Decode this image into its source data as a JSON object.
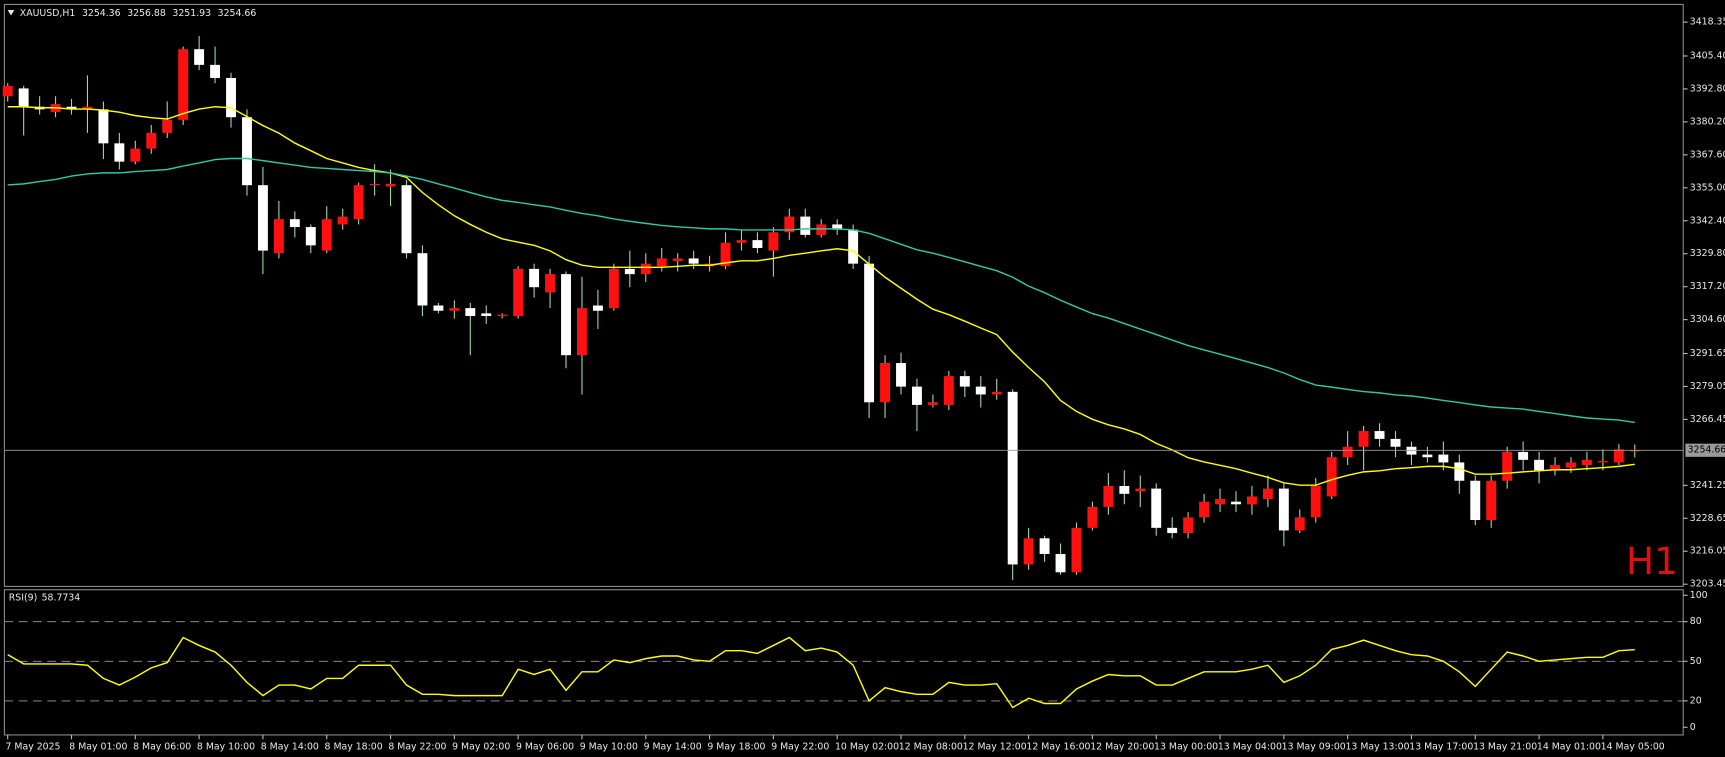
{
  "chart_data": [
    {
      "type": "candlestick",
      "title": "XAUUSD,H1",
      "watermark": "H1",
      "categories": [
        "7 May 2025",
        null,
        null,
        null,
        "8 May 01:00",
        null,
        null,
        null,
        "8 May 06:00",
        null,
        null,
        null,
        "8 May 10:00",
        null,
        null,
        null,
        "8 May 14:00",
        null,
        null,
        null,
        "8 May 18:00",
        null,
        null,
        null,
        "8 May 22:00",
        null,
        null,
        null,
        "9 May 02:00",
        null,
        null,
        null,
        "9 May 06:00",
        null,
        null,
        null,
        "9 May 10:00",
        null,
        null,
        null,
        "9 May 14:00",
        null,
        null,
        null,
        "9 May 18:00",
        null,
        null,
        null,
        "9 May 22:00",
        null,
        null,
        null,
        "10 May 02:00",
        null,
        null,
        null,
        "12 May 08:00",
        null,
        null,
        null,
        "12 May 12:00",
        null,
        null,
        null,
        "12 May 16:00",
        null,
        null,
        null,
        "12 May 20:00",
        null,
        null,
        null,
        "13 May 00:00",
        null,
        null,
        null,
        "13 May 04:00",
        null,
        null,
        null,
        "13 May 09:00",
        null,
        null,
        null,
        "13 May 13:00",
        null,
        null,
        null,
        "13 May 17:00",
        null,
        null,
        null,
        "13 May 21:00",
        null,
        null,
        null,
        "14 May 01:00",
        null,
        null,
        null,
        "14 May 05:00",
        null,
        null
      ],
      "open": [
        3390,
        3393,
        3386,
        3384,
        3386,
        3385,
        3385,
        3372,
        3365,
        3370,
        3376,
        3381,
        3408,
        3402,
        3397,
        3382,
        3356,
        3330,
        3343,
        3340,
        3331,
        3341,
        3343,
        3356,
        3355.5,
        3356,
        3330,
        3310,
        3308,
        3309,
        3307,
        3306,
        3306,
        3324,
        3315,
        3322,
        3291,
        3310,
        3309,
        3324,
        3322,
        3325,
        3327,
        3328,
        3325,
        3325,
        3334,
        3335,
        3331,
        3338,
        3344,
        3337,
        3341,
        3339,
        3326,
        3273,
        3288,
        3279,
        3272,
        3272,
        3283,
        3279,
        3276,
        3277,
        3211,
        3221,
        3215,
        3208,
        3225,
        3233,
        3241,
        3239,
        3240,
        3225,
        3223,
        3229,
        3234,
        3235,
        3234,
        3236,
        3240,
        3224,
        3229,
        3237,
        3252,
        3256,
        3262,
        3259,
        3256,
        3253,
        3253,
        3250,
        3243,
        3228,
        3243,
        3254,
        3251,
        3247,
        3248,
        3249,
        3250,
        3250,
        3254.36
      ],
      "high": [
        3395,
        3394,
        3390,
        3390,
        3389,
        3398,
        3388,
        3376,
        3373,
        3379,
        3388,
        3409,
        3413,
        3409,
        3399,
        3385,
        3363,
        3350,
        3346,
        3341,
        3348,
        3347,
        3357,
        3364,
        3362,
        3358,
        3333,
        3311,
        3312,
        3311,
        3310,
        3307,
        3325,
        3326,
        3324,
        3323,
        3321,
        3316,
        3326,
        3331,
        3330,
        3332,
        3330,
        3331,
        3329,
        3338,
        3339,
        3338,
        3340,
        3347,
        3347,
        3343,
        3343,
        3341,
        3329,
        3291,
        3292,
        3282,
        3276,
        3285,
        3285,
        3283,
        3282,
        3278,
        3225,
        3222,
        3219,
        3227,
        3235,
        3246,
        3247,
        3245,
        3242,
        3229,
        3231,
        3238,
        3240,
        3239,
        3241,
        3245,
        3242,
        3232,
        3244,
        3254,
        3262,
        3264,
        3265,
        3262,
        3258,
        3256,
        3258,
        3253,
        3245,
        3245,
        3256,
        3258,
        3254,
        3252,
        3252,
        3254,
        3255,
        3257,
        3256.88
      ],
      "low": [
        3388,
        3375,
        3383,
        3382,
        3383,
        3376,
        3366,
        3362,
        3364,
        3368,
        3374,
        3379,
        3400,
        3395,
        3378,
        3352,
        3322,
        3328,
        3336,
        3330,
        3330,
        3339,
        3341,
        3352,
        3348,
        3328,
        3306,
        3307,
        3305,
        3291,
        3303,
        3305,
        3305,
        3313,
        3309,
        3286,
        3276,
        3301,
        3308,
        3317,
        3319,
        3323,
        3323,
        3324,
        3323,
        3324,
        3331,
        3330,
        3321,
        3335,
        3336,
        3336,
        3337,
        3324,
        3267,
        3267,
        3276,
        3262,
        3271,
        3270,
        3275,
        3271,
        3274,
        3205,
        3209,
        3212,
        3207,
        3207,
        3224,
        3230,
        3234,
        3233,
        3222,
        3221,
        3221,
        3227,
        3231,
        3231,
        3230,
        3233,
        3218,
        3223,
        3227,
        3236,
        3249,
        3247,
        3256,
        3252,
        3249,
        3250,
        3247,
        3238,
        3226,
        3225,
        3240,
        3247,
        3242,
        3245,
        3246,
        3247,
        3247,
        3249,
        3251.93
      ],
      "close": [
        3394,
        3386,
        3385,
        3387,
        3385,
        3386,
        3372,
        3365,
        3370,
        3376,
        3381,
        3408,
        3402,
        3397,
        3382,
        3356,
        3331,
        3343,
        3340,
        3333,
        3343,
        3344,
        3356,
        3356.5,
        3356.5,
        3330,
        3310,
        3308,
        3309,
        3306,
        3306,
        3306.5,
        3324,
        3317,
        3322,
        3291,
        3309,
        3308,
        3324,
        3322,
        3326,
        3328,
        3328,
        3326,
        3326,
        3334,
        3335,
        3332,
        3338,
        3344,
        3337,
        3341,
        3339,
        3326,
        3273,
        3288,
        3279,
        3272,
        3273,
        3283,
        3279,
        3276,
        3277,
        3211,
        3221,
        3215,
        3208,
        3225,
        3233,
        3241,
        3238,
        3240,
        3225,
        3223,
        3229,
        3235,
        3236,
        3234,
        3237,
        3240,
        3224,
        3229,
        3241,
        3252,
        3256,
        3262,
        3259,
        3256,
        3253,
        3252,
        3250,
        3243,
        3228,
        3243,
        3254,
        3251,
        3247,
        3249,
        3250,
        3251,
        3250.5,
        3255,
        3254.66
      ],
      "up_color": "#ff1010",
      "down_color": "#ffffff",
      "wick_color": "#9fd89f",
      "series": [
        {
          "color": "#ffff00",
          "values": [
            3386.0,
            3386.0,
            3385.6,
            3385.6,
            3385.1,
            3385.1,
            3384.7,
            3383.9,
            3382.6,
            3381.8,
            3381.3,
            3383.4,
            3385.1,
            3386.0,
            3385.6,
            3382.2,
            3378.8,
            3375.9,
            3372.1,
            3369.2,
            3366.2,
            3364.5,
            3362.8,
            3361.6,
            3360.7,
            3359.0,
            3353.2,
            3348.5,
            3344.3,
            3341.0,
            3338.0,
            3335.5,
            3334.2,
            3333.0,
            3330.9,
            3327.5,
            3325.4,
            3324.6,
            3324.6,
            3324.6,
            3324.6,
            3324.6,
            3325.0,
            3325.4,
            3325.4,
            3326.3,
            3327.1,
            3327.1,
            3328.0,
            3329.2,
            3330.0,
            3330.9,
            3331.7,
            3330.9,
            3325.8,
            3320.8,
            3316.6,
            3312.4,
            3308.6,
            3306.5,
            3304.0,
            3301.4,
            3298.9,
            3292.2,
            3286.3,
            3280.8,
            3273.7,
            3269.5,
            3266.5,
            3264.4,
            3262.8,
            3260.7,
            3257.3,
            3254.8,
            3251.8,
            3250.2,
            3248.9,
            3247.6,
            3245.9,
            3244.3,
            3242.2,
            3241.3,
            3241.3,
            3243.4,
            3245.1,
            3246.4,
            3246.8,
            3247.6,
            3248.0,
            3248.5,
            3248.5,
            3247.6,
            3245.5,
            3245.5,
            3245.9,
            3246.4,
            3246.8,
            3247.2,
            3247.2,
            3247.6,
            3248.0,
            3248.5,
            3249.3
          ]
        },
        {
          "color": "#2fc9a8",
          "values": [
            3356.1,
            3356.5,
            3357.4,
            3358.2,
            3359.5,
            3360.3,
            3360.7,
            3360.7,
            3361.2,
            3361.6,
            3362.0,
            3363.3,
            3364.5,
            3365.8,
            3366.2,
            3366.2,
            3365.4,
            3364.5,
            3363.7,
            3362.8,
            3362.4,
            3362.0,
            3361.6,
            3361.2,
            3360.7,
            3359.5,
            3358.2,
            3356.5,
            3354.9,
            3353.2,
            3351.5,
            3350.2,
            3349.4,
            3348.5,
            3347.7,
            3346.4,
            3345.2,
            3344.3,
            3343.1,
            3342.2,
            3341.4,
            3340.6,
            3340.1,
            3339.7,
            3339.3,
            3339.3,
            3338.9,
            3338.9,
            3338.9,
            3338.9,
            3339.3,
            3339.3,
            3339.3,
            3338.9,
            3337.6,
            3335.5,
            3333.4,
            3331.3,
            3330.0,
            3328.4,
            3326.7,
            3325.0,
            3323.3,
            3320.8,
            3317.4,
            3314.9,
            3312.0,
            3309.4,
            3306.9,
            3305.2,
            3303.1,
            3301.0,
            3298.9,
            3296.8,
            3294.7,
            3293.0,
            3291.4,
            3289.7,
            3288.0,
            3286.3,
            3284.2,
            3281.7,
            3279.6,
            3278.8,
            3277.9,
            3277.1,
            3276.6,
            3275.8,
            3275.4,
            3274.6,
            3273.7,
            3272.9,
            3272.0,
            3271.2,
            3270.8,
            3270.4,
            3269.5,
            3268.7,
            3267.8,
            3267.0,
            3266.6,
            3266.2,
            3265.3
          ]
        }
      ],
      "ylim": [
        3202.6,
        3425.1
      ],
      "yticks": [
        3418.35,
        {
          "value": 3405.4,
          "label": "3405.40"
        },
        {
          "value": 3392.8,
          "label": "3392.80"
        },
        {
          "value": 3380.2,
          "label": "3380.20"
        },
        {
          "value": 3367.6,
          "label": "3367.60"
        },
        {
          "value": 3355,
          "label": "3355.00"
        },
        {
          "value": 3342.4,
          "label": "3342.40"
        },
        {
          "value": 3329.8,
          "label": "3329.80"
        },
        {
          "value": 3317.2,
          "label": "3317.20"
        },
        {
          "value": 3304.6,
          "label": "3304.60"
        },
        3291.65,
        3279.05,
        3266.45,
        3241.25,
        3228.65,
        3216.05,
        3203.45
      ]
    },
    {
      "type": "line",
      "title": "RSI(9)",
      "color": "#ffff00",
      "values": [
        55,
        48,
        48,
        48,
        48,
        47,
        37,
        32,
        38,
        45,
        49,
        68,
        62,
        57,
        47,
        34,
        24,
        32,
        32,
        29,
        37,
        37,
        47,
        47,
        47,
        32,
        25,
        25,
        24,
        24,
        24,
        24,
        44,
        40,
        44,
        28,
        42,
        42,
        51,
        49,
        52,
        54,
        54,
        51,
        50,
        58,
        58,
        56,
        62,
        68,
        58,
        60,
        57,
        47,
        20,
        30,
        27,
        25,
        25,
        34,
        32,
        32,
        33,
        15,
        22,
        18,
        18,
        29,
        35,
        40,
        39,
        39,
        32,
        32,
        37,
        42,
        42,
        42,
        44,
        47,
        34,
        39,
        47,
        59,
        62,
        66,
        62,
        58,
        55,
        54,
        50,
        42,
        31,
        44,
        57,
        54,
        50,
        51,
        52,
        53,
        53,
        58,
        58.7734
      ],
      "ylim": [
        -5.8,
        104.2
      ],
      "yticks": [
        0,
        20,
        50,
        80,
        100
      ]
    }
  ]
}
